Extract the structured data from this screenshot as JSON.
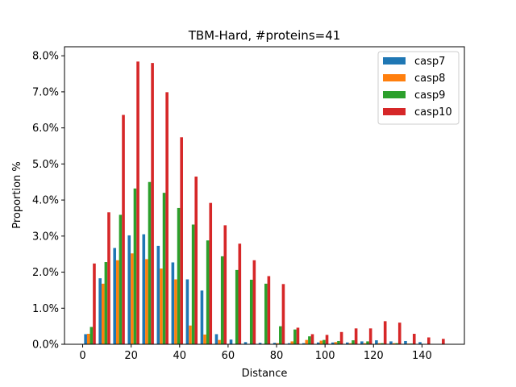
{
  "chart_data": {
    "type": "bar",
    "title": "TBM-Hard, #proteins=41",
    "xlabel": "Distance",
    "ylabel": "Proportion %",
    "xlim": [
      -7.5,
      157.5
    ],
    "ylim": [
      0,
      0.0825
    ],
    "xticks": [
      0,
      20,
      40,
      60,
      80,
      100,
      120,
      140
    ],
    "yticks": [
      0.0,
      0.01,
      0.02,
      0.03,
      0.04,
      0.05,
      0.06,
      0.07,
      0.08
    ],
    "ytick_labels": [
      "0.0%",
      "1.0%",
      "2.0%",
      "3.0%",
      "4.0%",
      "5.0%",
      "6.0%",
      "7.0%",
      "8.0%"
    ],
    "bin_centers": [
      3,
      9,
      15,
      21,
      27,
      33,
      39,
      45,
      51,
      57,
      63,
      69,
      75,
      81,
      87,
      93,
      99,
      105,
      111,
      117,
      123,
      129,
      135,
      141,
      147
    ],
    "legend_position": "top-right",
    "grid": false,
    "series": [
      {
        "name": "casp7",
        "color": "#1f77b4",
        "values": [
          0.0028,
          0.0183,
          0.0267,
          0.0302,
          0.0305,
          0.0273,
          0.0227,
          0.018,
          0.0149,
          0.0028,
          0.0013,
          0.0006,
          0.0004,
          0.0004,
          0.0003,
          0.0003,
          0.0005,
          0.0005,
          0.0005,
          0.0008,
          0.0011,
          0.0008,
          0.0009,
          0.0006,
          0.0
        ]
      },
      {
        "name": "casp8",
        "color": "#ff7f0e",
        "values": [
          0.0029,
          0.0168,
          0.0233,
          0.0252,
          0.0236,
          0.021,
          0.018,
          0.0052,
          0.0027,
          0.0012,
          0.0001,
          0.0001,
          0.0,
          0.0003,
          0.0008,
          0.0012,
          0.001,
          0.0006,
          0.0003,
          0.0003,
          0.0003,
          0.0003,
          0.0002,
          0.0001,
          0.0
        ]
      },
      {
        "name": "casp9",
        "color": "#2ca02c",
        "values": [
          0.0048,
          0.0228,
          0.0359,
          0.0432,
          0.045,
          0.042,
          0.0378,
          0.0332,
          0.0288,
          0.0244,
          0.0206,
          0.0179,
          0.0168,
          0.005,
          0.0041,
          0.0022,
          0.0012,
          0.0009,
          0.0011,
          0.0008,
          0.0003,
          0.0003,
          0.0002,
          0.0001,
          0.0
        ]
      },
      {
        "name": "casp10",
        "color": "#d62728",
        "values": [
          0.0224,
          0.0366,
          0.0636,
          0.0784,
          0.078,
          0.0699,
          0.0574,
          0.0465,
          0.0392,
          0.033,
          0.0279,
          0.0233,
          0.0189,
          0.0167,
          0.0046,
          0.0028,
          0.0026,
          0.0034,
          0.0044,
          0.0044,
          0.0064,
          0.006,
          0.0029,
          0.0019,
          0.0015
        ]
      }
    ]
  }
}
